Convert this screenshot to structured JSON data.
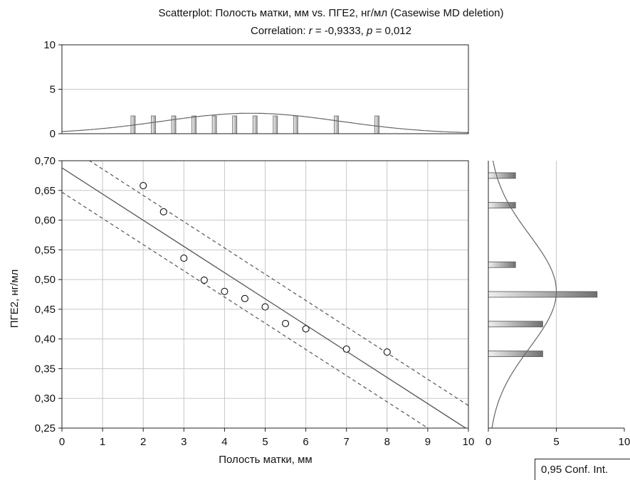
{
  "title_line1": "Scatterplot: Полость матки, мм vs. ПГЕ2, нг/мл (Casewise MD deletion)",
  "title_line2": {
    "prefix": "Correlation: ",
    "r_symbol": "r",
    "r_part": " = -0,9333, ",
    "p_symbol": "p",
    "p_part": " = 0,012"
  },
  "legend_label": "0,95 Conf. Int.",
  "chart_data": {
    "type": "scatter",
    "xlabel": "Полость матки, мм",
    "ylabel": "ПГЕ2, нг/мл",
    "xlim": [
      0,
      10
    ],
    "ylim": [
      0.25,
      0.7
    ],
    "x_ticks": [
      "0",
      "1",
      "2",
      "3",
      "4",
      "5",
      "6",
      "7",
      "8",
      "9",
      "10"
    ],
    "y_ticks": [
      "0,25",
      "0,30",
      "0,35",
      "0,40",
      "0,45",
      "0,50",
      "0,55",
      "0,60",
      "0,65",
      "0,70"
    ],
    "grid": true,
    "points": [
      {
        "x": 2.0,
        "y": 0.658
      },
      {
        "x": 2.5,
        "y": 0.614
      },
      {
        "x": 3.0,
        "y": 0.536
      },
      {
        "x": 3.5,
        "y": 0.499
      },
      {
        "x": 4.0,
        "y": 0.48
      },
      {
        "x": 4.5,
        "y": 0.468
      },
      {
        "x": 5.0,
        "y": 0.454
      },
      {
        "x": 5.5,
        "y": 0.426
      },
      {
        "x": 6.0,
        "y": 0.417
      },
      {
        "x": 7.0,
        "y": 0.383
      },
      {
        "x": 8.0,
        "y": 0.378
      }
    ],
    "regression_line": {
      "x": [
        0,
        10
      ],
      "y": [
        0.688,
        0.247
      ]
    },
    "confidence_band": {
      "upper": {
        "x": [
          0,
          10
        ],
        "y": [
          0.73,
          0.288
        ]
      },
      "lower": {
        "x": [
          0,
          10
        ],
        "y": [
          0.647,
          0.206
        ]
      }
    },
    "top_histogram": {
      "ylim": [
        0,
        10
      ],
      "y_ticks": [
        "0",
        "5",
        "10"
      ],
      "bins": [
        1.75,
        2.25,
        2.75,
        3.25,
        3.75,
        4.25,
        4.75,
        5.25,
        5.75,
        6.75,
        7.75
      ],
      "counts": [
        2,
        2,
        2,
        2,
        2,
        2,
        2,
        2,
        2,
        2,
        2
      ],
      "normal_fit": {
        "mean": 4.65,
        "sd": 2.2,
        "peak": 2.3
      }
    },
    "right_histogram": {
      "xlim": [
        0,
        10
      ],
      "x_ticks": [
        "0",
        "5",
        "10"
      ],
      "bins": [
        0.675,
        0.625,
        0.525,
        0.475,
        0.425,
        0.375
      ],
      "counts": [
        2,
        2,
        2,
        8,
        4,
        4
      ],
      "normal_fit": {
        "mean": 0.48,
        "sd": 0.095,
        "peak": 5.0
      }
    }
  }
}
